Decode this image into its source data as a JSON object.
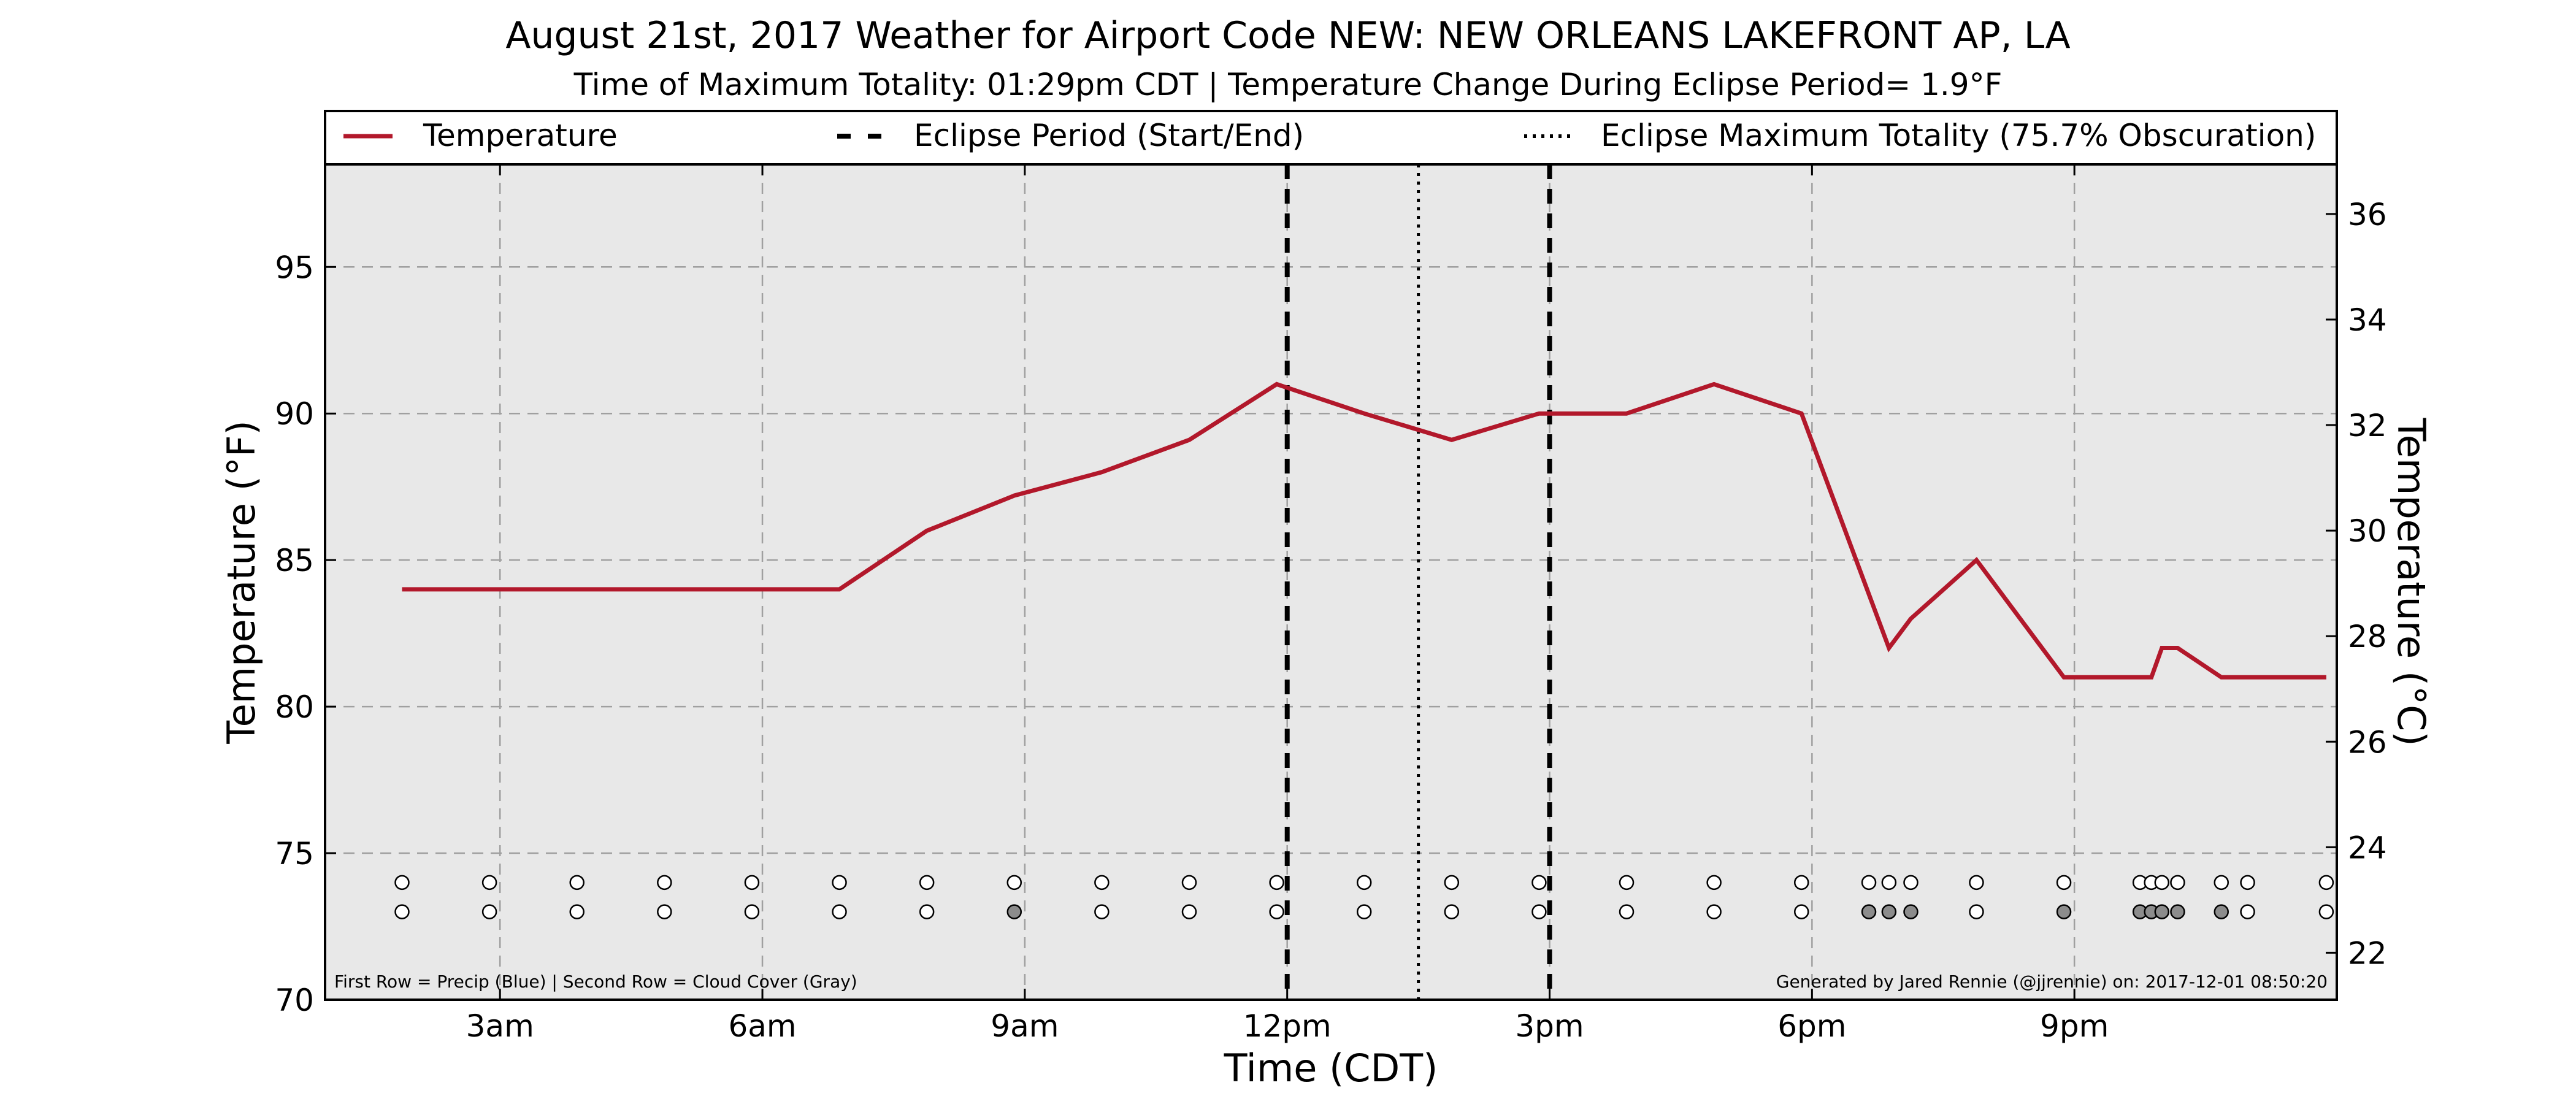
{
  "chart_data": {
    "type": "line",
    "title": "August 21st, 2017 Weather for Airport Code NEW: NEW ORLEANS LAKEFRONT AP, LA",
    "subtitle": "Time of Maximum Totality: 01:29pm CDT | Temperature Change During Eclipse Period= 1.9°F",
    "xlabel": "Time (CDT)",
    "ylabel": "Temperature (°F)",
    "ylabel_right": "Temperature (°C)",
    "x_unit": "hours",
    "xlim": [
      1.0,
      24.0
    ],
    "ylim": [
      70,
      98.5
    ],
    "ylim_right_c": [
      21.11,
      36.94
    ],
    "grid": true,
    "legend_position": "top",
    "x_ticks": [
      {
        "value": 3,
        "label": "3am"
      },
      {
        "value": 6,
        "label": "6am"
      },
      {
        "value": 9,
        "label": "9am"
      },
      {
        "value": 12,
        "label": "12pm"
      },
      {
        "value": 15,
        "label": "3pm"
      },
      {
        "value": 18,
        "label": "6pm"
      },
      {
        "value": 21,
        "label": "9pm"
      }
    ],
    "y_ticks": [
      70,
      75,
      80,
      85,
      90,
      95
    ],
    "y_ticks_right": [
      22,
      24,
      26,
      28,
      30,
      32,
      34,
      36
    ],
    "series": [
      {
        "name": "Temperature",
        "color": "#b2182b",
        "x": [
          1.88,
          6.88,
          7.88,
          8.88,
          9.88,
          10.88,
          11.88,
          12.88,
          13.88,
          14.88,
          15.88,
          16.88,
          17.88,
          18.88,
          19.13,
          19.88,
          20.88,
          21.88,
          22.0,
          22.18,
          22.68,
          23.88
        ],
        "y": [
          84,
          84,
          86,
          87.2,
          88,
          89.1,
          91,
          90,
          89.1,
          90,
          90,
          91,
          90,
          82,
          83,
          85,
          81,
          81,
          82,
          82,
          81,
          81
        ]
      }
    ],
    "eclipse": {
      "start_label": "Eclipse Period (Start/End)",
      "max_label": "Eclipse Maximum Totality (75.7% Obscuration)",
      "start_x": 12.0,
      "end_x": 15.0,
      "max_x": 13.5
    },
    "precip_row": {
      "y": 74,
      "x": [
        1.88,
        2.88,
        3.88,
        4.88,
        5.88,
        6.88,
        7.88,
        8.88,
        9.88,
        10.88,
        11.88,
        12.88,
        13.88,
        14.88,
        15.88,
        16.88,
        17.88,
        18.65,
        18.88,
        19.13,
        19.88,
        20.88,
        21.75,
        21.88,
        22.0,
        22.18,
        22.68,
        22.98,
        23.88
      ],
      "filled": []
    },
    "cloud_row": {
      "y": 73,
      "x": [
        1.88,
        2.88,
        3.88,
        4.88,
        5.88,
        6.88,
        7.88,
        8.88,
        9.88,
        10.88,
        11.88,
        12.88,
        13.88,
        14.88,
        15.88,
        16.88,
        17.88,
        18.65,
        18.88,
        19.13,
        19.88,
        20.88,
        21.75,
        21.88,
        22.0,
        22.18,
        22.68,
        22.98,
        23.88
      ],
      "filled": [
        8.88,
        18.65,
        18.88,
        19.13,
        20.88,
        21.75,
        21.88,
        22.0,
        22.18,
        22.68
      ]
    },
    "footnote_left": "First Row = Precip (Blue) | Second Row = Cloud Cover (Gray)",
    "footnote_right": "Generated by Jared Rennie (@jjrennie) on: 2017-12-01 08:50:20",
    "colors": {
      "plot_background": "#e8e8e8",
      "temperature": "#b2182b",
      "grid": "#a0a0a0",
      "cloud_fill": "#8c8c8c"
    }
  }
}
